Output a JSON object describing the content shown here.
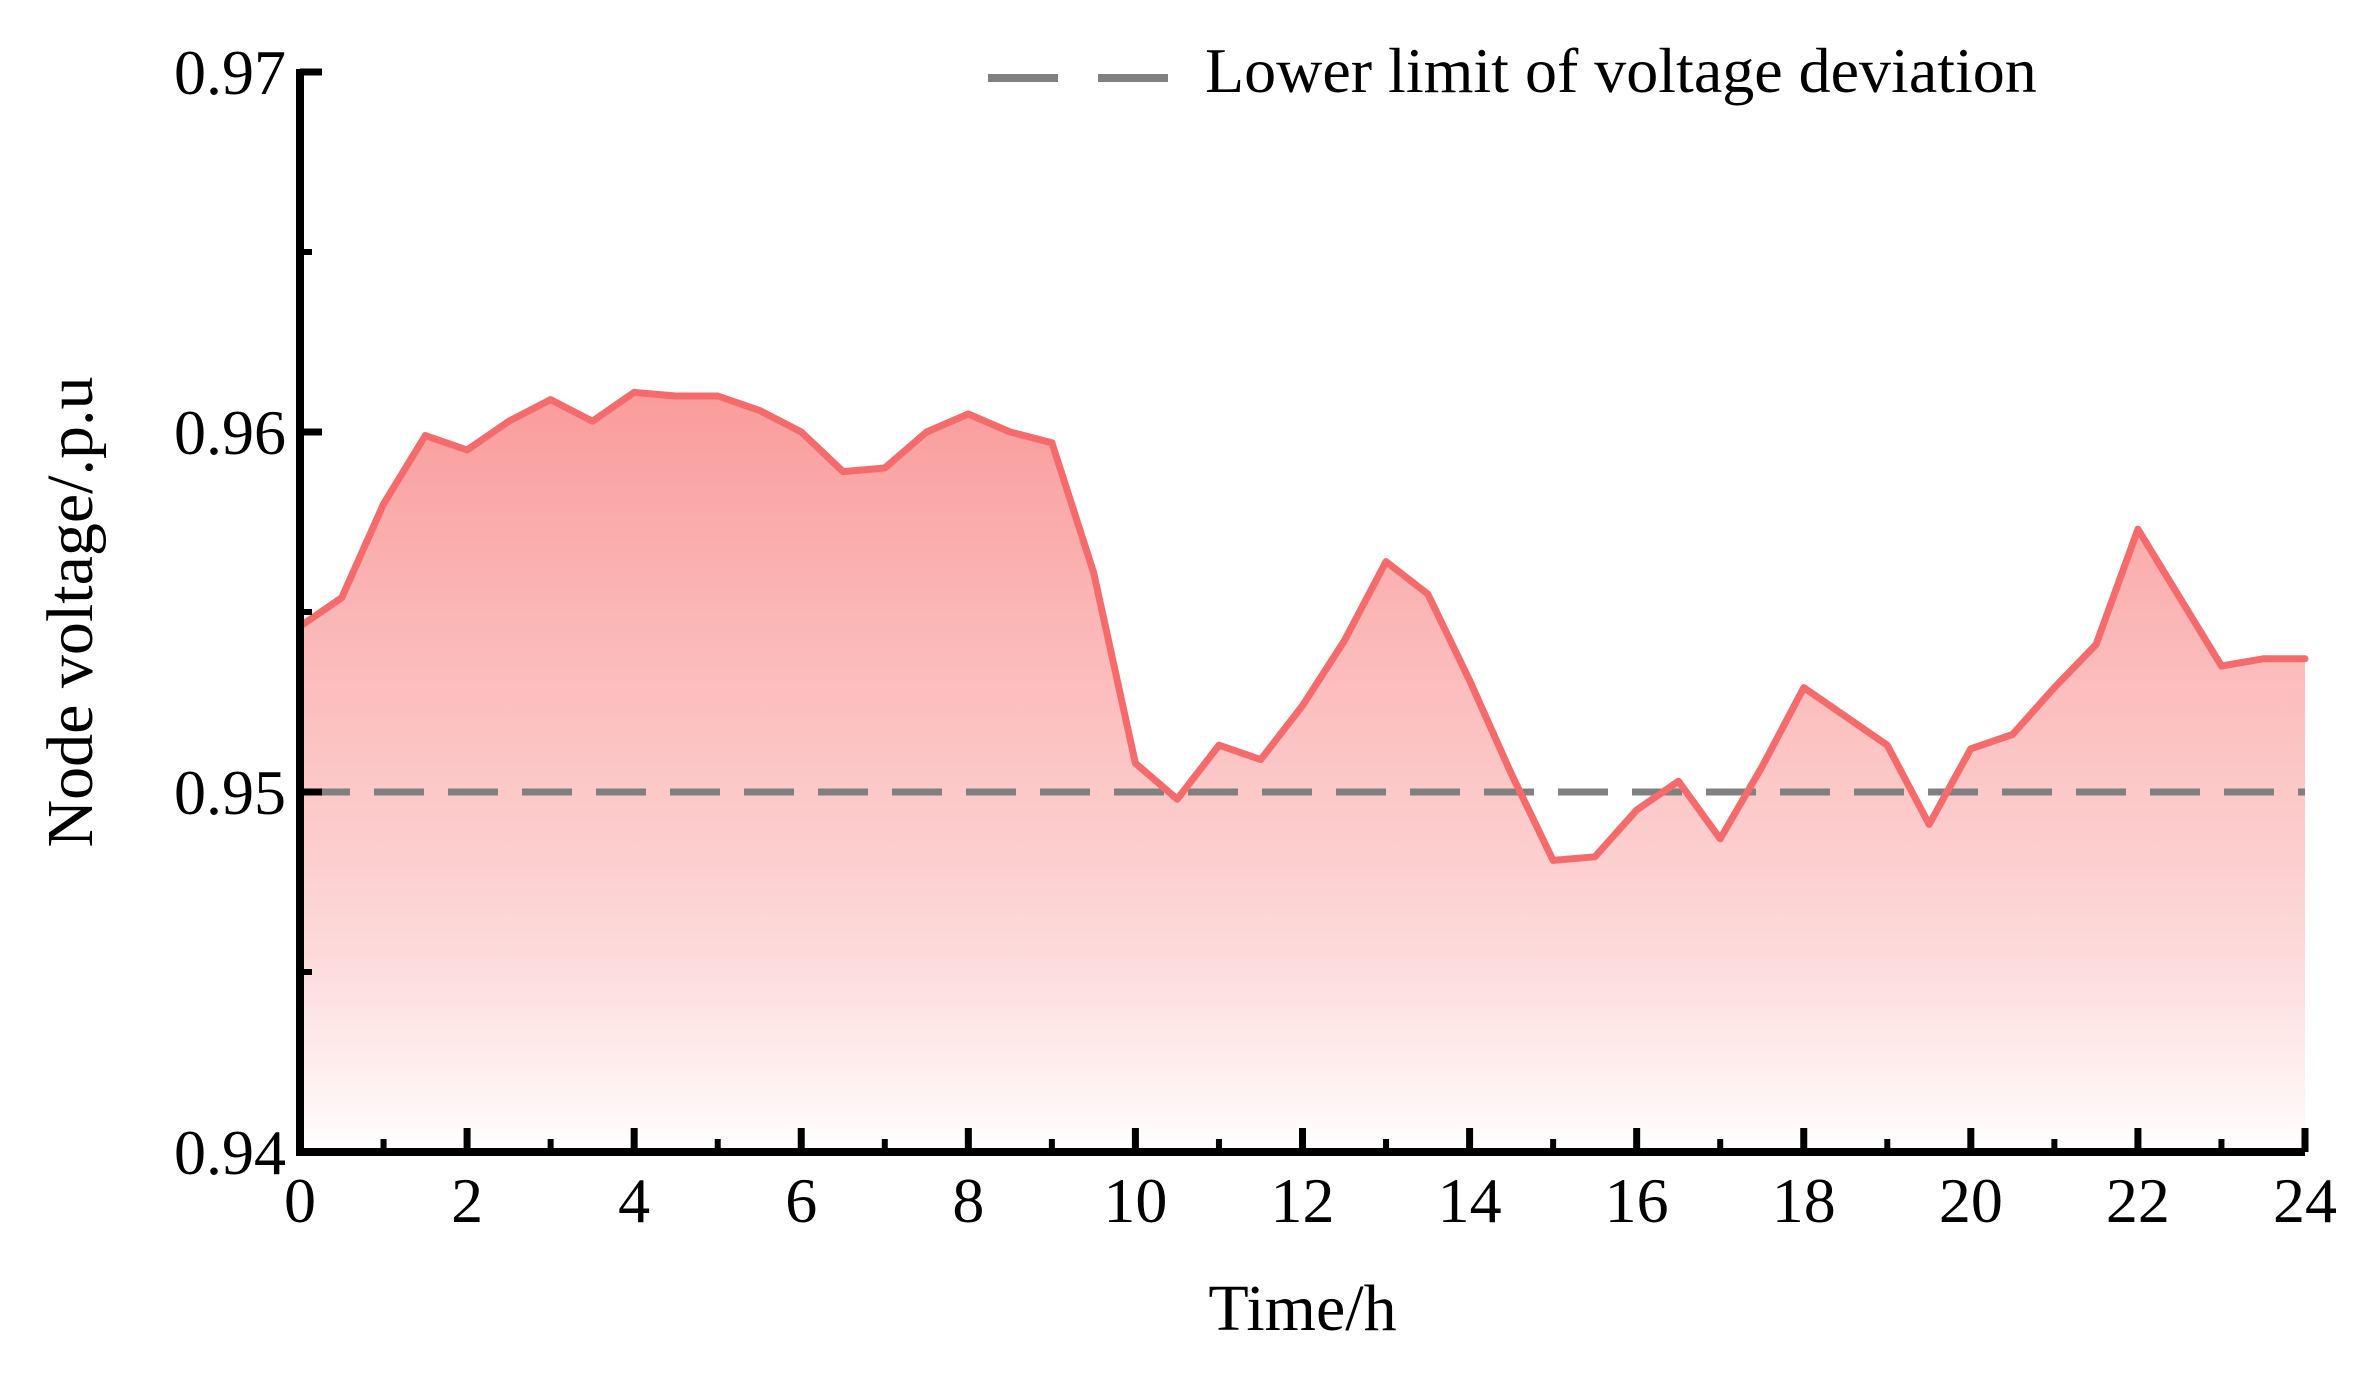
{
  "chart_data": {
    "type": "area",
    "title": "",
    "xlabel": "Time/h",
    "ylabel": "Node voltage/.p.u",
    "xlim": [
      0,
      24
    ],
    "ylim": [
      0.94,
      0.97
    ],
    "x_ticks": [
      "0",
      "2",
      "4",
      "6",
      "8",
      "10",
      "12",
      "14",
      "16",
      "18",
      "20",
      "22",
      "24"
    ],
    "y_ticks": [
      "0.94",
      "0.95",
      "0.96",
      "0.97"
    ],
    "grid": false,
    "legend_position": "top-right",
    "series": [
      {
        "color": "#f56b6b",
        "x": [
          0,
          0.5,
          1,
          1.5,
          2,
          2.5,
          3,
          3.5,
          4,
          4.5,
          5,
          5.5,
          6,
          6.5,
          7,
          7.5,
          8,
          8.5,
          9,
          9.5,
          10,
          10.5,
          11,
          11.5,
          12,
          12.5,
          13,
          13.5,
          14,
          14.5,
          15,
          15.5,
          16,
          16.5,
          17,
          17.5,
          18,
          18.5,
          19,
          19.5,
          20,
          20.5,
          21,
          21.5,
          22,
          22.5,
          23,
          23.5,
          24
        ],
        "values": [
          0.9546,
          0.9554,
          0.958,
          0.9599,
          0.9595,
          0.9603,
          0.9609,
          0.9603,
          0.9611,
          0.961,
          0.961,
          0.9606,
          0.96,
          0.9589,
          0.959,
          0.96,
          0.9605,
          0.96,
          0.9597,
          0.9561,
          0.9508,
          0.9498,
          0.9513,
          0.9509,
          0.9524,
          0.9542,
          0.9564,
          0.9555,
          0.9531,
          0.9505,
          0.9481,
          0.9482,
          0.9495,
          0.9503,
          0.9487,
          0.9507,
          0.9529,
          0.9521,
          0.9513,
          0.9491,
          0.9512,
          0.9516,
          0.9529,
          0.9541,
          0.9573,
          0.9554,
          0.9535,
          0.9537,
          0.9537
        ]
      },
      {
        "name": "Lower limit of voltage deviation",
        "color": "#808080",
        "style": "dashed",
        "x": [
          0,
          24
        ],
        "values": [
          0.95,
          0.95
        ]
      }
    ]
  }
}
